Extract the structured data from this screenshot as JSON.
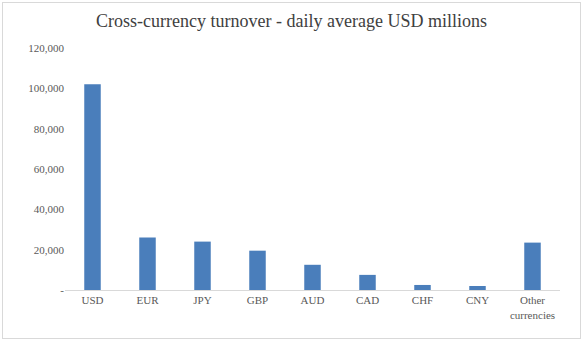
{
  "chart_data": {
    "type": "bar",
    "title": "Cross-currency turnover - daily average USD millions",
    "categories": [
      "USD",
      "EUR",
      "JPY",
      "GBP",
      "AUD",
      "CAD",
      "CHF",
      "CNY",
      "Other currencies"
    ],
    "values": [
      102000,
      26000,
      24000,
      19500,
      12500,
      7500,
      2500,
      2000,
      23500
    ],
    "color": "#4a7ebb",
    "ylim": [
      0,
      120000
    ],
    "yticks": [
      {
        "value": 0,
        "label": "-"
      },
      {
        "value": 20000,
        "label": "20,000"
      },
      {
        "value": 40000,
        "label": "40,000"
      },
      {
        "value": 60000,
        "label": "60,000"
      },
      {
        "value": 80000,
        "label": "80,000"
      },
      {
        "value": 100000,
        "label": "100,000"
      },
      {
        "value": 120000,
        "label": "120,000"
      }
    ],
    "grid": false
  }
}
